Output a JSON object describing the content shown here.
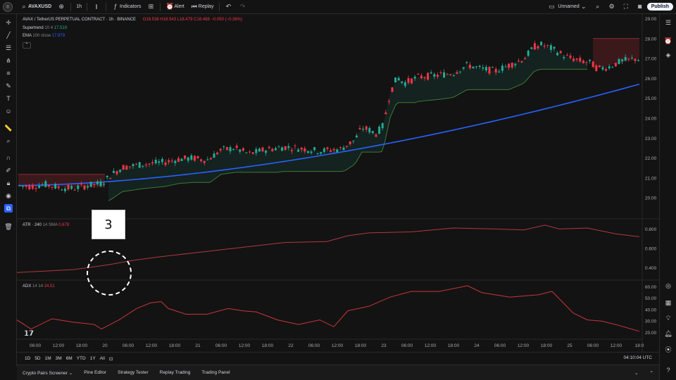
{
  "topbar": {
    "symbol": "AVAXUSD",
    "interval": "1h",
    "indicators_label": "Indicators",
    "alert_label": "Alert",
    "replay_label": "Replay",
    "layout_name": "Unnamed",
    "publish_label": "Publish"
  },
  "legend": {
    "title": "AVAX / TetherUS PERPETUAL CONTRACT · 1h · BINANCE",
    "ohlc": "O18.538 H18.543 L18.479 C18.488 −0.050 (−0.36%)",
    "supertrend_name": "Supertrend",
    "supertrend_params": "10 4",
    "supertrend_value": "17.519",
    "ema_name": "EMA",
    "ema_params": "100 close",
    "ema_value": "17.979",
    "atr_name": "ATR · 240",
    "atr_params": "14 SMA",
    "atr_value": "0.678",
    "adx_name": "ADX",
    "adx_params": "14 14",
    "adx_value": "24.51"
  },
  "price_axis": [
    "29.00",
    "28.00",
    "27.00",
    "26.00",
    "25.00",
    "24.00",
    "23.00",
    "22.00",
    "21.00",
    "20.00"
  ],
  "atr_axis": [
    "0.800",
    "0.600",
    "0.400"
  ],
  "adx_axis": [
    "60.00",
    "50.00",
    "40.00",
    "30.00",
    "20.00"
  ],
  "time_axis": [
    "06:00",
    "12:00",
    "18:00",
    "20",
    "06:00",
    "12:00",
    "18:00",
    "21",
    "06:00",
    "12:00",
    "18:00",
    "22",
    "06:00",
    "12:00",
    "18:00",
    "23",
    "06:00",
    "12:00",
    "18:00",
    "24",
    "06:00",
    "12:00",
    "18:00",
    "25",
    "06:00",
    "12:00",
    "18:0"
  ],
  "ranges": [
    "1D",
    "5D",
    "1M",
    "3M",
    "6M",
    "YTD",
    "1Y",
    "All"
  ],
  "clock": "04:10:04 UTC",
  "bottom_tabs": [
    "Crypto Pairs Screener",
    "Pine Editor",
    "Strategy Tester",
    "Replay Trading",
    "Trading Panel"
  ],
  "annotation": "3",
  "colors": {
    "up": "#22ab94",
    "down": "#f23645",
    "ema": "#2962ff",
    "atr": "#b2393c",
    "adx": "#c9353b",
    "bg": "#131313"
  }
}
